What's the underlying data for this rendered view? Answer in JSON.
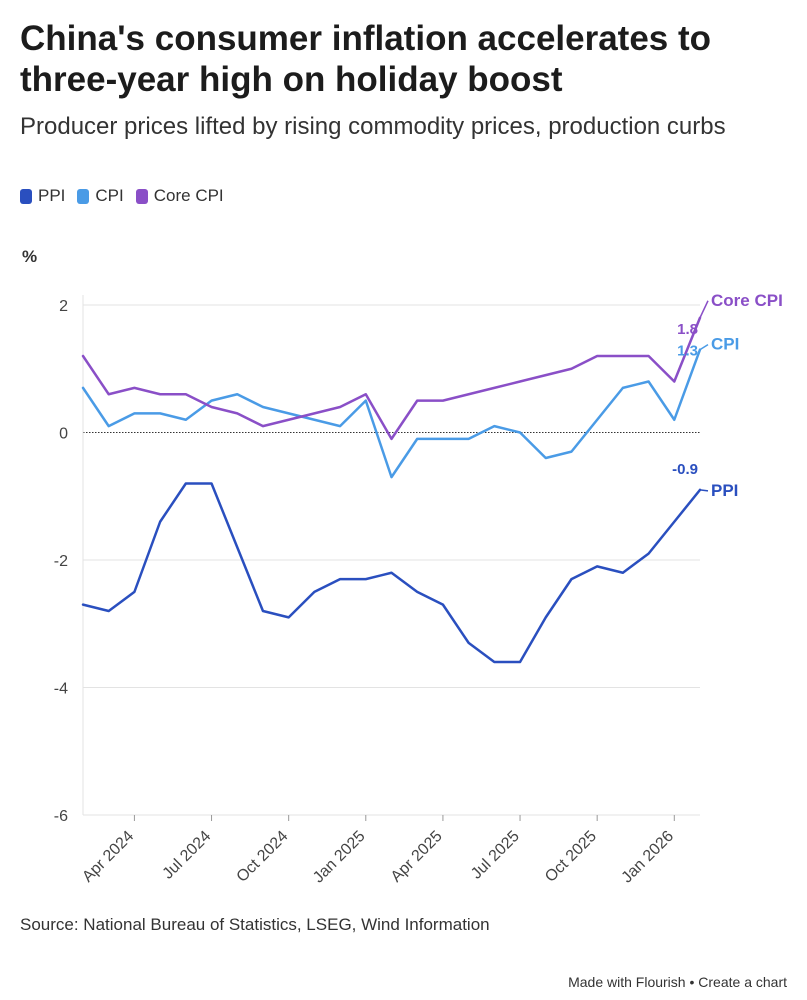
{
  "title": "China's consumer inflation accelerates to three-year high on holiday boost",
  "subtitle": "Producer prices lifted by rising commodity prices, production curbs",
  "source": "Source: National Bureau of Statistics, LSEG, Wind Information",
  "footer": {
    "made_with": "Made with Flourish",
    "separator": "•",
    "create": "Create a chart"
  },
  "chart_data": {
    "type": "line",
    "title": "China's consumer inflation accelerates to three-year high on holiday boost",
    "ylabel": "%",
    "xlabel": "",
    "ylim": [
      -6,
      2
    ],
    "yticks": [
      2,
      0,
      -2,
      -4,
      -6
    ],
    "x_start": "Feb 2024",
    "x_months": 25,
    "xtick_labels": [
      {
        "label": "Apr 2024",
        "index": 2
      },
      {
        "label": "Jul 2024",
        "index": 5
      },
      {
        "label": "Oct 2024",
        "index": 8
      },
      {
        "label": "Jan 2025",
        "index": 11
      },
      {
        "label": "Apr 2025",
        "index": 14
      },
      {
        "label": "Jul 2025",
        "index": 17
      },
      {
        "label": "Oct 2025",
        "index": 20
      },
      {
        "label": "Jan 2026",
        "index": 23
      }
    ],
    "series": [
      {
        "name": "PPI",
        "color": "#2a4fbf",
        "values": [
          -2.7,
          -2.8,
          -2.5,
          -1.4,
          -0.8,
          -0.8,
          -1.8,
          -2.8,
          -2.9,
          -2.5,
          -2.3,
          -2.3,
          -2.2,
          -2.5,
          -2.7,
          -3.3,
          -3.6,
          -3.6,
          -2.9,
          -2.3,
          -2.1,
          -2.2,
          -1.9,
          -1.4,
          -0.9
        ],
        "end_value_label": "-0.9",
        "end_label": "PPI"
      },
      {
        "name": "CPI",
        "color": "#4a9be6",
        "values": [
          0.7,
          0.1,
          0.3,
          0.3,
          0.2,
          0.5,
          0.6,
          0.4,
          0.3,
          0.2,
          0.1,
          0.5,
          -0.7,
          -0.1,
          -0.1,
          -0.1,
          0.1,
          0.0,
          -0.4,
          -0.3,
          0.2,
          0.7,
          0.8,
          0.2,
          1.3
        ],
        "end_value_label": "1.3",
        "end_label": "CPI"
      },
      {
        "name": "Core CPI",
        "color": "#8a4fc7",
        "values": [
          1.2,
          0.6,
          0.7,
          0.6,
          0.6,
          0.4,
          0.3,
          0.1,
          0.2,
          0.3,
          0.4,
          0.6,
          -0.1,
          0.5,
          0.5,
          0.6,
          0.7,
          0.8,
          0.9,
          1.0,
          1.2,
          1.2,
          1.2,
          0.8,
          1.8
        ],
        "end_value_label": "1.8",
        "end_label": "Core CPI"
      }
    ],
    "zero_line": true,
    "grid": true,
    "legend": "top-left"
  }
}
